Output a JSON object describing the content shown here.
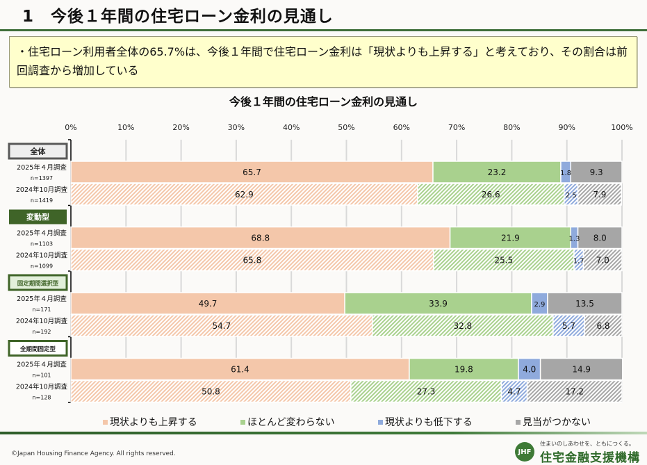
{
  "page": {
    "title": "1　今後１年間の住宅ローン金利の見通し",
    "summary": "・住宅ローン利用者全体の65.7%は、今後１年間で住宅ローン金利は「現状よりも上昇する」と考えており、その割合は前回調査から増加している",
    "copyright": "©Japan Housing Finance Agency. All rights reserved.",
    "logo": {
      "mark": "JHF",
      "tagline": "住まいのしあわせを、ともにつくる。",
      "name": "住宅金融支援機構"
    }
  },
  "chart_data": {
    "type": "bar",
    "orientation": "horizontal-stacked-100",
    "title": "今後１年間の住宅ローン金利の見通し",
    "xlim": [
      0,
      100
    ],
    "xticks": [
      "0%",
      "10%",
      "20%",
      "30%",
      "40%",
      "50%",
      "60%",
      "70%",
      "80%",
      "90%",
      "100%"
    ],
    "grid": true,
    "legend_position": "bottom",
    "series_names": [
      "現状よりも上昇する",
      "ほとんど変わらない",
      "現状よりも低下する",
      "見当がつかない"
    ],
    "colors": [
      "#f4c7aa",
      "#a9d18e",
      "#8faadc",
      "#a6a6a6"
    ],
    "groups": [
      {
        "label": "全体",
        "style": "gray",
        "rows": [
          {
            "survey": "2025年４月調査",
            "n": "n=1397",
            "current": true,
            "values": [
              65.7,
              23.2,
              1.8,
              9.3
            ]
          },
          {
            "survey": "2024年10月調査",
            "n": "n=1419",
            "current": false,
            "values": [
              62.9,
              26.6,
              2.5,
              7.9
            ]
          }
        ]
      },
      {
        "label": "変動型",
        "style": "green",
        "rows": [
          {
            "survey": "2025年４月調査",
            "n": "n=1103",
            "current": true,
            "values": [
              68.8,
              21.9,
              1.3,
              8.0
            ]
          },
          {
            "survey": "2024年10月調査",
            "n": "n=1099",
            "current": false,
            "values": [
              65.8,
              25.5,
              1.7,
              7.0
            ]
          }
        ]
      },
      {
        "label": "固定期間選択型",
        "style": "light",
        "rows": [
          {
            "survey": "2025年４月調査",
            "n": "n=171",
            "current": true,
            "values": [
              49.7,
              33.9,
              2.9,
              13.5
            ]
          },
          {
            "survey": "2024年10月調査",
            "n": "n=192",
            "current": false,
            "values": [
              54.7,
              32.8,
              5.7,
              6.8
            ]
          }
        ]
      },
      {
        "label": "全期間固定型",
        "style": "white",
        "rows": [
          {
            "survey": "2025年４月調査",
            "n": "n=101",
            "current": true,
            "values": [
              61.4,
              19.8,
              4.0,
              14.9
            ]
          },
          {
            "survey": "2024年10月調査",
            "n": "n=128",
            "current": false,
            "values": [
              50.8,
              27.3,
              4.7,
              17.2
            ]
          }
        ]
      }
    ]
  }
}
